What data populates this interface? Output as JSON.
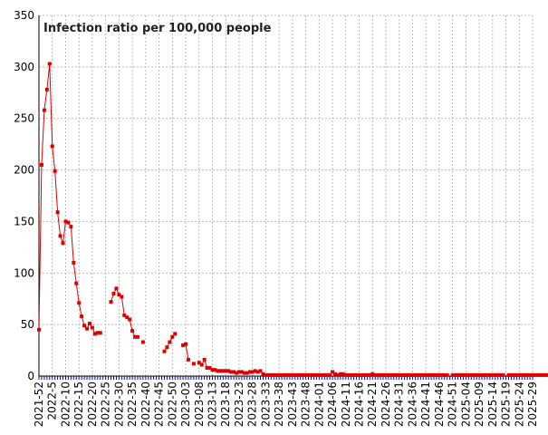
{
  "chart_data": {
    "type": "line",
    "title": "Infection ratio per 100,000 people",
    "xlabel": "",
    "ylabel": "",
    "ylim": [
      0,
      350
    ],
    "yticks": [
      0,
      50,
      100,
      150,
      200,
      250,
      300,
      350
    ],
    "grid": true,
    "x_label_step_weeks": 5,
    "x_start": "2021-52",
    "x_ticks": [
      "2021-52",
      "2022-5",
      "2022-10",
      "2022-15",
      "2022-20",
      "2022-25",
      "2022-30",
      "2022-35",
      "2022-40",
      "2022-45",
      "2022-50",
      "2023-03",
      "2023-08",
      "2023-13",
      "2023-18",
      "2023-23",
      "2023-28",
      "2023-33",
      "2023-38",
      "2023-43",
      "2023-48",
      "2024-01",
      "2024-06",
      "2024-11",
      "2024-16",
      "2024-21",
      "2024-26",
      "2024-31",
      "2024-36",
      "2024-41",
      "2024-46",
      "2024-51",
      "2025-04",
      "2025-09",
      "2025-14",
      "2025-19",
      "2025-24",
      "2025-29"
    ],
    "series": [
      {
        "values": [
          45,
          205,
          258,
          278,
          303,
          223,
          199,
          159,
          136,
          129,
          150,
          149,
          145,
          110,
          90,
          71,
          58,
          49,
          46,
          51,
          47,
          41,
          42,
          42,
          null,
          null,
          null,
          72,
          80,
          85,
          79,
          77,
          59,
          57,
          55,
          44,
          38,
          38,
          null,
          33,
          null,
          null,
          null,
          null,
          null,
          null,
          null,
          24,
          28,
          33,
          38,
          41,
          null,
          null,
          30,
          31,
          16,
          null,
          12,
          null,
          13,
          11,
          16,
          8,
          8,
          6,
          6,
          5,
          5,
          5,
          5,
          5,
          4,
          4,
          3,
          4,
          4,
          3,
          3,
          4,
          4,
          5,
          4,
          5,
          2,
          1,
          1,
          1,
          1,
          1,
          1,
          1,
          1,
          1,
          1,
          1,
          1,
          1,
          1,
          1,
          1,
          1,
          1,
          1,
          1,
          1,
          1,
          1,
          1,
          1,
          4,
          2,
          1,
          2,
          2,
          1,
          1,
          1,
          1,
          1,
          1,
          1,
          1,
          1,
          1,
          2,
          1,
          1,
          1,
          1,
          1,
          1,
          1,
          1,
          1,
          1,
          1,
          1,
          1,
          1,
          1,
          1,
          1,
          1,
          1,
          1,
          1,
          1,
          1,
          1,
          1,
          1,
          1,
          1,
          null,
          1,
          1,
          1,
          1,
          1,
          1,
          1,
          1,
          1,
          1,
          1,
          1,
          1,
          1,
          1,
          1,
          1,
          1,
          1,
          1,
          null,
          1,
          1,
          1,
          1,
          1,
          1,
          1,
          1,
          1,
          1,
          1,
          1,
          1,
          1,
          1,
          1,
          1,
          1,
          1,
          1,
          1,
          1,
          2,
          2,
          1,
          1,
          1,
          1,
          2,
          2,
          1
        ]
      }
    ],
    "colors": {
      "series": "#dd0000",
      "grid": "#bbbbbb",
      "axis": "#000000",
      "x_ticks_mark": "#0000cc"
    }
  }
}
